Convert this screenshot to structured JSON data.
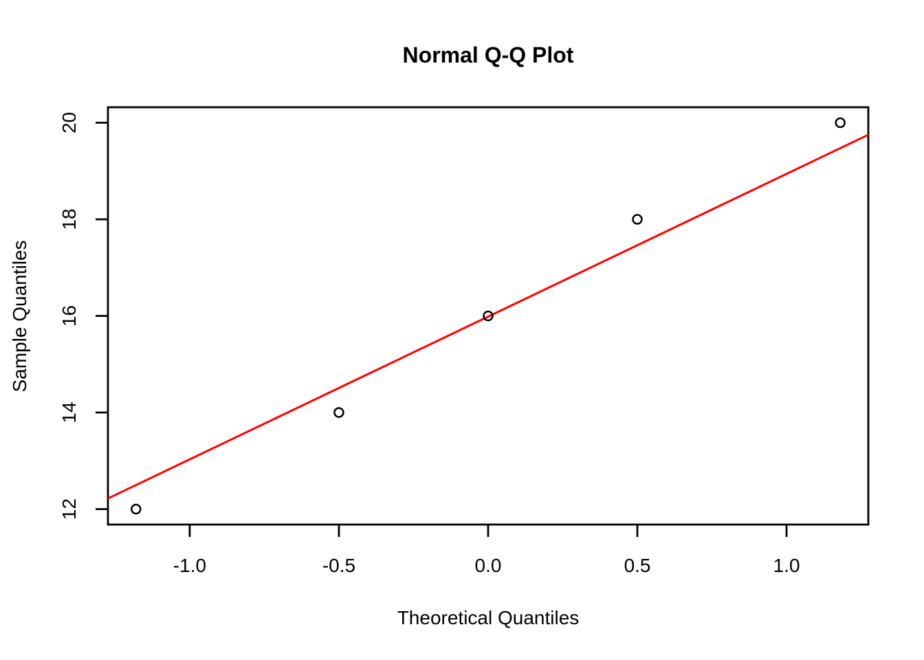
{
  "page": {
    "background_color": "#FFFFFF",
    "foreground_color": "#000000"
  },
  "chart_data": {
    "type": "scatter",
    "title": "Normal Q-Q Plot",
    "xlabel": "Theoretical Quantiles",
    "ylabel": "Sample Quantiles",
    "xlim": [
      -1.274,
      1.274
    ],
    "ylim": [
      11.68,
      20.32
    ],
    "grid": false,
    "legend": "none",
    "x_ticks": [
      {
        "value": -1.0,
        "label": "-1.0"
      },
      {
        "value": -0.5,
        "label": "-0.5"
      },
      {
        "value": 0.0,
        "label": "0.0"
      },
      {
        "value": 0.5,
        "label": "0.5"
      },
      {
        "value": 1.0,
        "label": "1.0"
      }
    ],
    "y_ticks": [
      {
        "value": 12,
        "label": "12"
      },
      {
        "value": 14,
        "label": "14"
      },
      {
        "value": 16,
        "label": "16"
      },
      {
        "value": 18,
        "label": "18"
      },
      {
        "value": 20,
        "label": "20"
      }
    ],
    "points": [
      {
        "x": -1.18,
        "y": 12
      },
      {
        "x": -0.5,
        "y": 14
      },
      {
        "x": 0.0,
        "y": 16
      },
      {
        "x": 0.5,
        "y": 18
      },
      {
        "x": 1.18,
        "y": 20
      }
    ],
    "point_style": {
      "shape": "open-circle",
      "stroke_color": "#000000"
    },
    "fit_line": {
      "description": "qqline through data quartiles, slope 2.95, intercept 16",
      "x1": -1.274,
      "y1": 12.22,
      "x2": 1.274,
      "y2": 19.75,
      "color": "#FF0000"
    },
    "axis_color": "#000000"
  }
}
